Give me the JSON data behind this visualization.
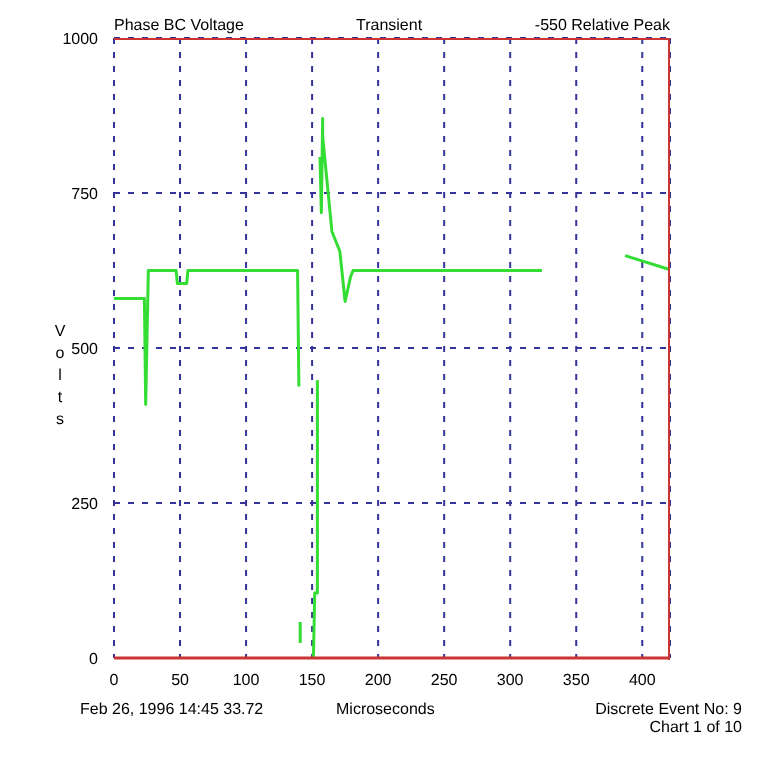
{
  "chart_data": {
    "type": "line",
    "title": "Phase BC Voltage",
    "subtitle": "Transient",
    "xlabel": "Microseconds",
    "ylabel": "Volts",
    "annotations": [
      "-550 Relative Peak",
      "Feb 26, 1996 14:45 33.72",
      "Discrete Event No: 9",
      "Chart 1 of 10"
    ],
    "series": [
      {
        "color": "#33dd33",
        "x": [
          0,
          21,
          23,
          24,
          26,
          47,
          48,
          55,
          56,
          139,
          140,
          140.5,
          141,
          141,
          141.5,
          151,
          152,
          154,
          154,
          155,
          156,
          157,
          158,
          158,
          165,
          171,
          175,
          179,
          181,
          324,
          350,
          387,
          420
        ],
        "values": [
          580,
          580,
          580,
          409,
          625,
          625,
          604,
          604,
          625,
          625,
          438,
          null,
          58,
          24,
          null,
          0,
          105,
          105,
          448,
          null,
          808,
          718,
          870,
          841,
          688,
          656,
          575,
          614,
          625,
          625,
          null,
          649,
          627
        ]
      }
    ],
    "xlim": [
      0,
      421
    ],
    "xticks": [
      0,
      50,
      100,
      150,
      200,
      250,
      300,
      350,
      400
    ],
    "ylim": [
      0,
      1000
    ],
    "yticks": [
      0,
      250,
      500,
      750,
      1000
    ],
    "grid": true,
    "legend": false,
    "marker": "none",
    "line_style": "solid"
  }
}
